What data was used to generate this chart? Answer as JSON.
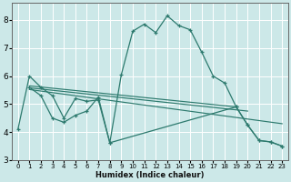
{
  "background_color": "#cce8e8",
  "grid_color": "#ffffff",
  "line_color": "#2d7a6e",
  "xlabel": "Humidex (Indice chaleur)",
  "xlim": [
    -0.5,
    23.5
  ],
  "ylim": [
    3,
    8.6
  ],
  "yticks": [
    3,
    4,
    5,
    6,
    7,
    8
  ],
  "xticks": [
    0,
    1,
    2,
    3,
    4,
    5,
    6,
    7,
    8,
    9,
    10,
    11,
    12,
    13,
    14,
    15,
    16,
    17,
    18,
    19,
    20,
    21,
    22,
    23
  ],
  "lines": [
    {
      "x": [
        0,
        1,
        2,
        3,
        4,
        5,
        6,
        7,
        8,
        9,
        10,
        11,
        12,
        13,
        14,
        15,
        16,
        17,
        18,
        19,
        20,
        21,
        22,
        23
      ],
      "y": [
        4.1,
        6.0,
        5.6,
        5.3,
        4.5,
        5.2,
        5.1,
        5.15,
        3.62,
        6.05,
        7.6,
        7.85,
        7.55,
        8.15,
        7.8,
        7.65,
        6.85,
        6.0,
        5.75,
        4.9,
        4.25,
        3.7,
        3.65,
        3.5
      ],
      "marker": true
    },
    {
      "x": [
        1,
        2,
        3,
        4,
        5,
        6,
        7,
        8,
        19,
        20,
        21,
        22,
        23
      ],
      "y": [
        5.6,
        5.3,
        4.5,
        4.35,
        4.6,
        4.75,
        5.25,
        3.62,
        4.9,
        4.25,
        3.7,
        3.65,
        3.5
      ],
      "marker": true
    },
    {
      "x": [
        1,
        19
      ],
      "y": [
        5.65,
        4.9
      ],
      "marker": false
    },
    {
      "x": [
        1,
        20
      ],
      "y": [
        5.58,
        4.75
      ],
      "marker": false
    },
    {
      "x": [
        1,
        23
      ],
      "y": [
        5.52,
        4.3
      ],
      "marker": false
    }
  ]
}
